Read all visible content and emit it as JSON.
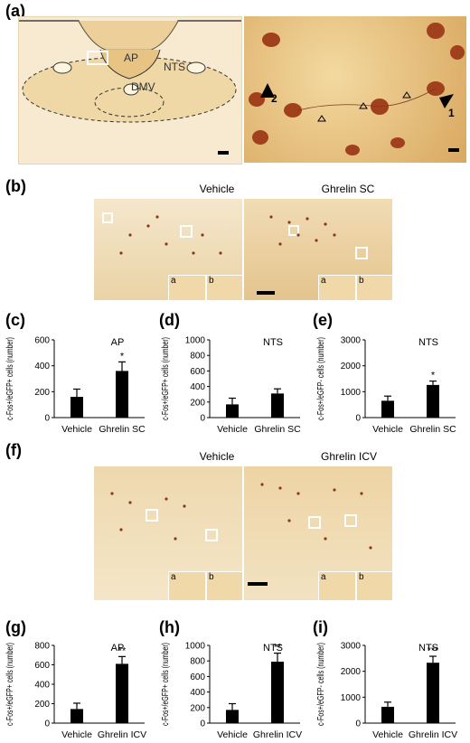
{
  "panel_labels": [
    "(a)",
    "(b)",
    "(c)",
    "(d)",
    "(e)",
    "(f)",
    "(g)",
    "(h)",
    "(i)"
  ],
  "panel_a": {
    "region_labels": [
      "AP",
      "NTS",
      "DMV"
    ],
    "arrow_labels": [
      "2",
      "1"
    ]
  },
  "panel_b": {
    "titles": [
      "Vehicle",
      "Ghrelin SC"
    ],
    "inset_labels": [
      "a",
      "b",
      "a",
      "b"
    ]
  },
  "panel_f": {
    "titles": [
      "Vehicle",
      "Ghrelin ICV"
    ],
    "inset_labels": [
      "a",
      "b",
      "a",
      "b"
    ]
  },
  "colors": {
    "tissue": "#e8c98a",
    "tissue_light": "#f3e3c0",
    "stain": "#8a3a1c",
    "bar": "#000000"
  },
  "chart_data": [
    {
      "id": "c",
      "type": "bar",
      "title": "AP",
      "ylabel": "c-Fos+/eGFP+ cells (number)",
      "categories": [
        "Vehicle",
        "Ghrelin SC"
      ],
      "values": [
        160,
        360
      ],
      "errors": [
        60,
        70
      ],
      "significance": [
        "",
        "*"
      ],
      "ylim": [
        0,
        600
      ],
      "yticks": [
        "0",
        "200",
        "400",
        "600"
      ]
    },
    {
      "id": "d",
      "type": "bar",
      "title": "NTS",
      "ylabel": "c-Fos+/eGFP+ cells (number)",
      "categories": [
        "Vehicle",
        "Ghrelin SC"
      ],
      "values": [
        170,
        310
      ],
      "errors": [
        80,
        60
      ],
      "significance": [
        "",
        ""
      ],
      "ylim": [
        0,
        1000
      ],
      "yticks": [
        "0",
        "200",
        "400",
        "600",
        "800",
        "1000"
      ]
    },
    {
      "id": "e",
      "type": "bar",
      "title": "NTS",
      "ylabel": "c-Fos+/eGFP- cells (number)",
      "categories": [
        "Vehicle",
        "Ghrelin SC"
      ],
      "values": [
        650,
        1260
      ],
      "errors": [
        180,
        150
      ],
      "significance": [
        "",
        "*"
      ],
      "ylim": [
        0,
        3000
      ],
      "yticks": [
        "0",
        "1000",
        "2000",
        "3000"
      ]
    },
    {
      "id": "g",
      "type": "bar",
      "title": "AP",
      "ylabel": "c-Fos+/eGFP+ cells (number)",
      "categories": [
        "Vehicle",
        "Ghrelin ICV"
      ],
      "values": [
        145,
        610
      ],
      "errors": [
        60,
        75
      ],
      "significance": [
        "",
        "**"
      ],
      "ylim": [
        0,
        800
      ],
      "yticks": [
        "0",
        "200",
        "400",
        "600",
        "800"
      ]
    },
    {
      "id": "h",
      "type": "bar",
      "title": "NTS",
      "ylabel": "c-Fos+/eGFP+ cells (number)",
      "categories": [
        "Vehicle",
        "Ghrelin ICV"
      ],
      "values": [
        170,
        790
      ],
      "errors": [
        80,
        110
      ],
      "significance": [
        "",
        "**"
      ],
      "ylim": [
        0,
        1000
      ],
      "yticks": [
        "0",
        "200",
        "400",
        "600",
        "800",
        "1000"
      ]
    },
    {
      "id": "i",
      "type": "bar",
      "title": "NTS",
      "ylabel": "c-Fos+/eGFP- cells (number)",
      "categories": [
        "Vehicle",
        "Ghrelin ICV"
      ],
      "values": [
        630,
        2330
      ],
      "errors": [
        180,
        250
      ],
      "significance": [
        "",
        "***"
      ],
      "ylim": [
        0,
        3000
      ],
      "yticks": [
        "0",
        "1000",
        "2000",
        "3000"
      ]
    }
  ]
}
